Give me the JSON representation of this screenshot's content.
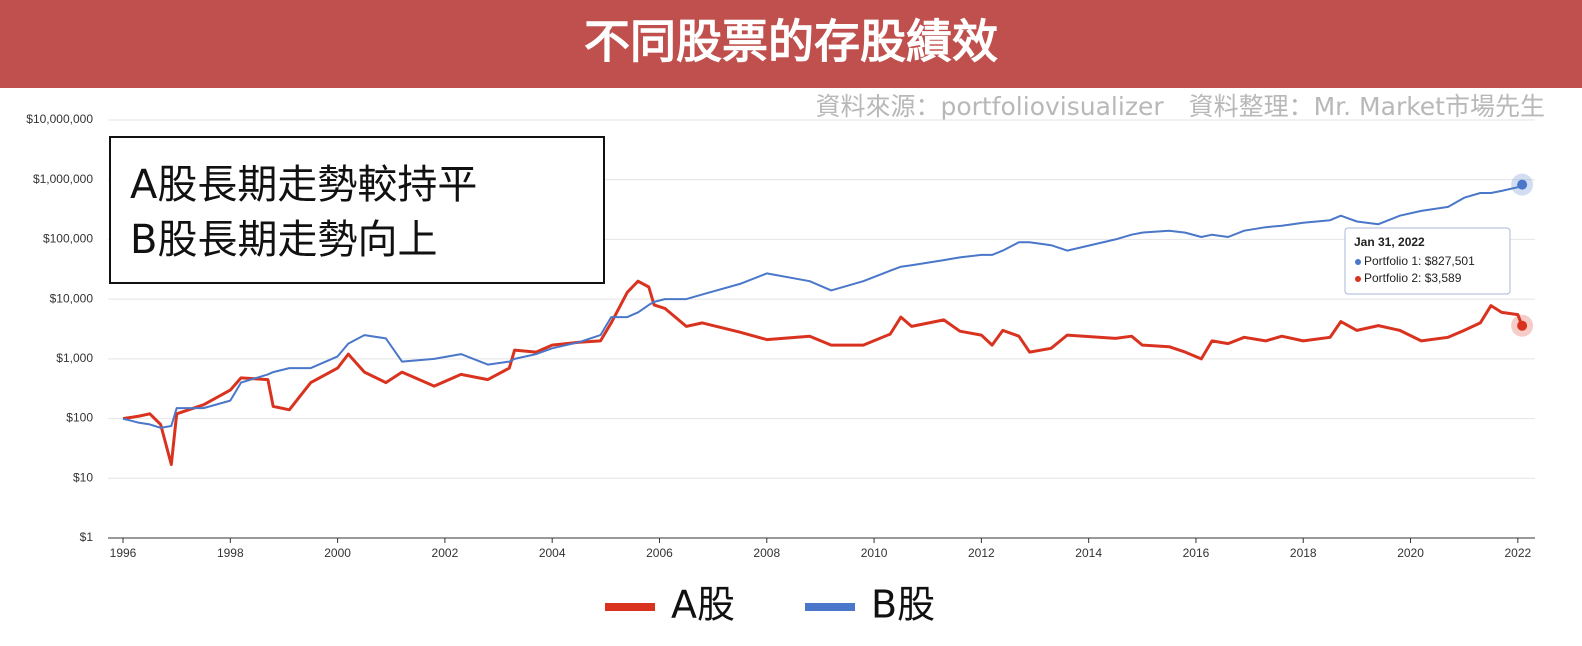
{
  "header": {
    "title": "不同股票的存股績效",
    "source": "資料來源：portfoliovisualizer　資料整理：Mr. Market市場先生"
  },
  "chart_data": {
    "type": "line",
    "log_scale": true,
    "grid": true,
    "annotation": [
      "A股長期走勢較持平",
      "B股長期走勢向上"
    ],
    "tooltip": {
      "date": "Jan 31, 2022",
      "items": [
        "Portfolio 1: $827,501",
        "Portfolio 2: $3,589"
      ]
    },
    "xlim": [
      1995.72,
      2022.32
    ],
    "xticks": [
      1996,
      1998,
      2000,
      2002,
      2004,
      2006,
      2008,
      2010,
      2012,
      2014,
      2016,
      2018,
      2020,
      2022
    ],
    "ylim": [
      1,
      10000000
    ],
    "yticks": [
      {
        "value": 1,
        "label": "$1"
      },
      {
        "value": 10,
        "label": "$10"
      },
      {
        "value": 100,
        "label": "$100"
      },
      {
        "value": 1000,
        "label": "$1,000"
      },
      {
        "value": 10000,
        "label": "$10,000"
      },
      {
        "value": 100000,
        "label": "$100,000"
      },
      {
        "value": 1000000,
        "label": "$1,000,000"
      },
      {
        "value": 10000000,
        "label": "$10,000,000"
      }
    ],
    "x": [
      1996,
      1996.3,
      1996.5,
      1996.7,
      1996.9,
      1997.0,
      1997.5,
      1998.0,
      1998.2,
      1998.7,
      1998.8,
      1999.1,
      1999.5,
      2000.0,
      2000.2,
      2000.5,
      2000.9,
      2001.2,
      2001.8,
      2002.3,
      2002.8,
      2003.2,
      2003.3,
      2003.7,
      2004.0,
      2004.5,
      2004.9,
      2005.1,
      2005.4,
      2005.6,
      2005.8,
      2005.9,
      2006.1,
      2006.5,
      2006.8,
      2007.5,
      2008.0,
      2008.8,
      2009.2,
      2009.8,
      2010.3,
      2010.5,
      2010.7,
      2011.3,
      2011.6,
      2012.0,
      2012.2,
      2012.4,
      2012.7,
      2012.9,
      2013.3,
      2013.6,
      2014.5,
      2014.8,
      2015.0,
      2015.5,
      2015.8,
      2016.1,
      2016.3,
      2016.6,
      2016.9,
      2017.3,
      2017.6,
      2018.0,
      2018.5,
      2018.7,
      2019.0,
      2019.4,
      2019.8,
      2020.2,
      2020.7,
      2021.0,
      2021.3,
      2021.5,
      2021.7,
      2022.0,
      2022.08
    ],
    "series": [
      {
        "name": "A股",
        "color": "#d93320",
        "values": [
          100,
          110,
          120,
          80,
          17,
          120,
          170,
          300,
          480,
          450,
          160,
          140,
          400,
          700,
          1200,
          600,
          400,
          600,
          350,
          550,
          450,
          700,
          1400,
          1300,
          1700,
          1900,
          2000,
          4000,
          13000,
          20000,
          16000,
          8000,
          7000,
          3500,
          4000,
          2800,
          2100,
          2400,
          1700,
          1700,
          2600,
          5000,
          3500,
          4500,
          2900,
          2500,
          1700,
          3000,
          2400,
          1300,
          1500,
          2500,
          2200,
          2400,
          1700,
          1600,
          1300,
          1000,
          2000,
          1800,
          2300,
          2000,
          2400,
          2000,
          2300,
          4200,
          3000,
          3600,
          3000,
          2000,
          2300,
          3000,
          4000,
          7800,
          6000,
          5500,
          3589
        ]
      },
      {
        "name": "B股",
        "color": "#4a77c9",
        "values": [
          100,
          85,
          80,
          70,
          75,
          150,
          150,
          200,
          400,
          550,
          600,
          700,
          700,
          1100,
          1800,
          2500,
          2200,
          900,
          1000,
          1200,
          800,
          900,
          1000,
          1200,
          1500,
          1900,
          2500,
          5000,
          5000,
          6000,
          8000,
          9000,
          10000,
          10000,
          12000,
          18000,
          27000,
          20000,
          14000,
          20000,
          30000,
          35000,
          37000,
          45000,
          50000,
          55000,
          55000,
          65000,
          90000,
          90000,
          80000,
          65000,
          100000,
          120000,
          130000,
          140000,
          130000,
          110000,
          120000,
          110000,
          140000,
          160000,
          170000,
          190000,
          210000,
          250000,
          200000,
          180000,
          250000,
          300000,
          350000,
          500000,
          600000,
          600000,
          650000,
          750000,
          827501
        ]
      }
    ]
  }
}
